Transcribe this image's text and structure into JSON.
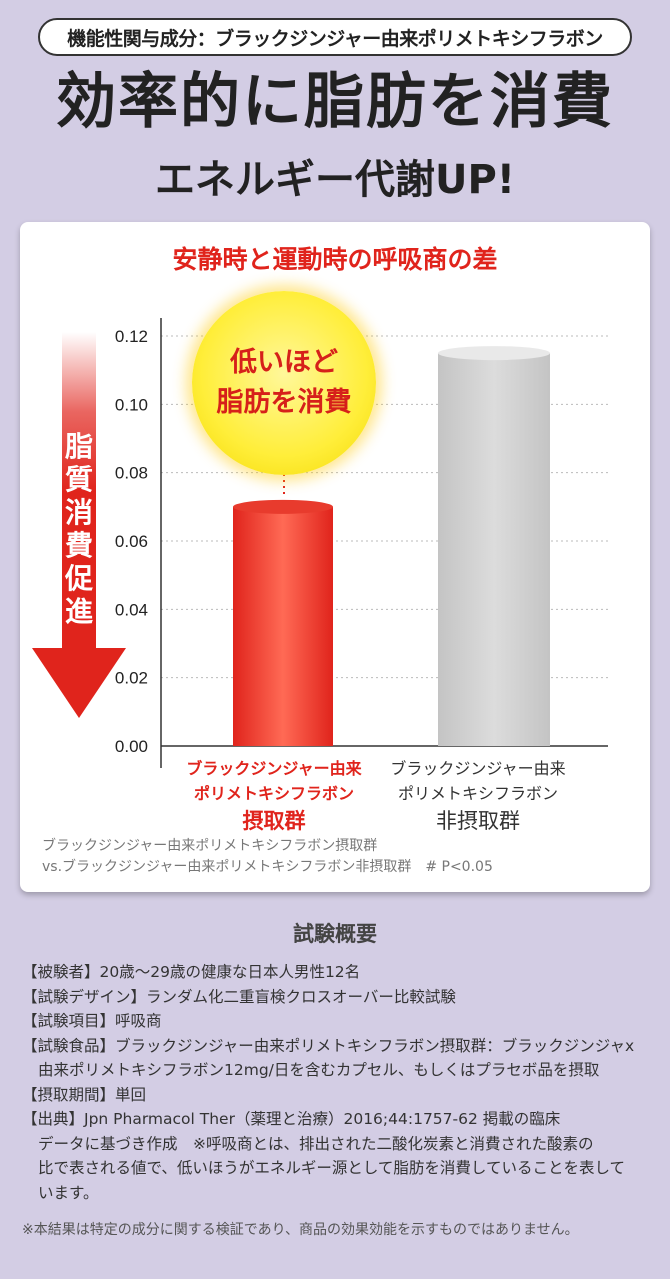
{
  "header": {
    "pill": "機能性関与成分：ブラックジンジャー由来ポリメトキシフラボン",
    "headline": "効率的に脂肪を消費",
    "subhead": "エネルギー代謝UP!"
  },
  "card": {
    "title": "安静時と運動時の呼吸商の差",
    "arrow_label": "脂質消費促進",
    "bubble": {
      "line1": "低いほど",
      "line2": "脂肪を消費"
    },
    "footnote": {
      "line1": "ブラックジンジャー由来ポリメトキシフラボン摂取群",
      "line2": "vs.ブラックジンジャー由来ポリメトキシフラボン非摂取群　# P<0.05"
    }
  },
  "chart_data": {
    "type": "bar",
    "title": "安静時と運動時の呼吸商の差",
    "categories": [
      {
        "line1": "ブラックジンジャー由来",
        "line2": "ポリメトキシフラボン",
        "line3": "摂取群"
      },
      {
        "line1": "ブラックジンジャー由来",
        "line2": "ポリメトキシフラボン",
        "line3": "非摂取群"
      }
    ],
    "values": [
      0.07,
      0.115
    ],
    "ylim": [
      0,
      0.12
    ],
    "yticks": [
      "0.00",
      "0.02",
      "0.04",
      "0.06",
      "0.08",
      "0.10",
      "0.12"
    ],
    "grid": true,
    "colors": {
      "treated": "#ff5540",
      "untreated": "#d2d2d2",
      "accent": "#e0241c"
    }
  },
  "summary": {
    "title": "試験概要",
    "subjects": "【被験者】20歳〜29歳の健康な日本人男性12名",
    "design": "【試験デザイン】ランダム化二重盲検クロスオーバー比較試験",
    "items": "【試験項目】呼吸商",
    "food_line1": "【試験食品】ブラックジンジャー由来ポリメトキシフラボン摂取群：ブラックジンジャx",
    "food_line2": "由来ポリメトキシフラボン12mg/日を含むカプセル、もしくはプラセボ品を摂取",
    "period": "【摂取期間】単回",
    "source_line1": "【出典】Jpn Pharmacol Ther（薬理と治療）2016;44:1757-62 掲載の臨床",
    "source_line2": "データに基づき作成　※呼吸商とは、排出された二酸化炭素と消費された酸素の",
    "source_line3": "比で表される値で、低いほうがエネルギー源として脂肪を消費していることを表して",
    "source_line4": "います。",
    "disclaimer": "※本結果は特定の成分に関する検証であり、商品の効果効能を示すものではありません。"
  }
}
